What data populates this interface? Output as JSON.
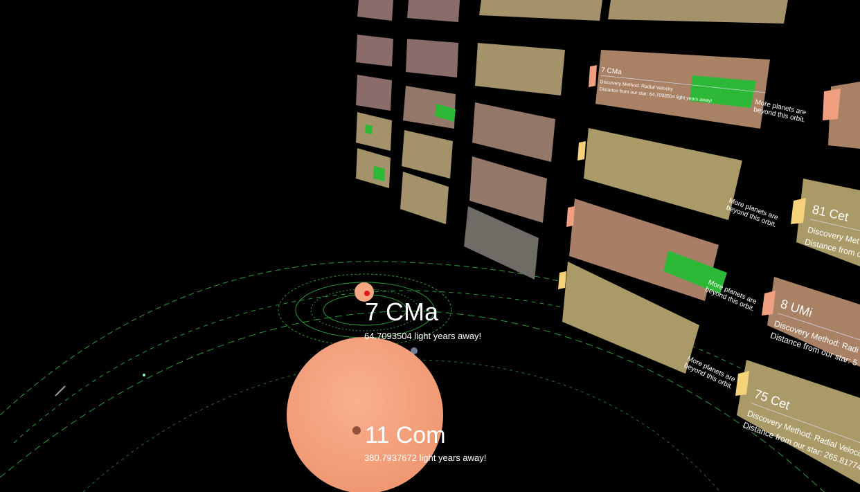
{
  "stars": [
    {
      "name": "7 CMa",
      "distance": "64.7093504 light years away!"
    },
    {
      "name": "11 Com",
      "distance": "380.7937672 light years away!"
    }
  ],
  "panels": [
    {
      "name": "7 CMa",
      "method": "Discovery Method: Radial Velocity",
      "distance": "Distance from our star: 64.7093504 light years away!"
    },
    {
      "name": "81 Cet",
      "method": "Discovery Met",
      "distance": "Distance from o"
    },
    {
      "name": "8 UMi",
      "method": "Discovery Method: Radi",
      "distance": "Distance from our star: 5"
    },
    {
      "name": "75 Cet",
      "method": "Discovery Method: Radial Velocit",
      "distance": "Distance from our star: 265.81774"
    }
  ],
  "notes": [
    [
      "More planets are",
      "beyond this orbit."
    ],
    [
      "More planets are",
      "beyond this orbit."
    ],
    [
      "More planets are",
      "beyond this orbit."
    ],
    [
      "More planets are",
      "beyond this orbit."
    ]
  ]
}
